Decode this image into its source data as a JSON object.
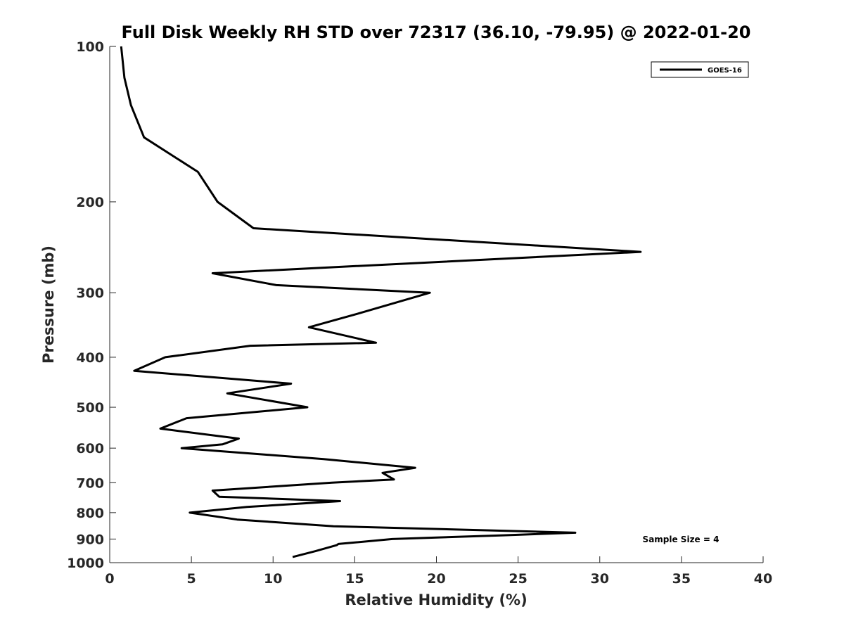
{
  "chart_data": {
    "type": "line",
    "title": "Full Disk Weekly RH STD over 72317 (36.10, -79.95) @ 2022-01-20",
    "xlabel": "Relative Humidity (%)",
    "ylabel": "Pressure (mb)",
    "xlim": [
      0,
      40
    ],
    "ylim": [
      100,
      1000
    ],
    "y_scale": "log",
    "y_reversed": true,
    "xticks": [
      0,
      5,
      10,
      15,
      20,
      25,
      30,
      35,
      40
    ],
    "yticks": [
      100,
      200,
      300,
      400,
      500,
      600,
      700,
      800,
      900,
      1000
    ],
    "grid": false,
    "legend": "top-right",
    "annotation": "Sample Size = 4",
    "series": [
      {
        "name": "GOES-16",
        "color": "#000000",
        "x": [
          0.7,
          0.9,
          1.3,
          2.1,
          5.4,
          6.6,
          8.8,
          32.5,
          6.3,
          10.2,
          19.6,
          15.1,
          12.2,
          16.3,
          8.6,
          3.4,
          1.5,
          11.1,
          7.2,
          12.1,
          4.7,
          3.1,
          7.9,
          6.9,
          4.4,
          13.1,
          18.7,
          16.7,
          17.4,
          13.6,
          6.3,
          6.7,
          14.1,
          8.4,
          4.9,
          7.8,
          13.7,
          28.5,
          24.1,
          17.3,
          14.0,
          13.9,
          12.6,
          11.2
        ],
        "y": [
          100,
          115,
          130,
          150,
          175,
          200,
          225,
          250,
          275,
          290,
          300,
          330,
          350,
          375,
          380,
          400,
          425,
          450,
          470,
          500,
          525,
          550,
          575,
          590,
          600,
          630,
          655,
          670,
          690,
          700,
          725,
          745,
          760,
          780,
          800,
          825,
          850,
          875,
          885,
          900,
          920,
          925,
          950,
          975
        ]
      }
    ]
  }
}
